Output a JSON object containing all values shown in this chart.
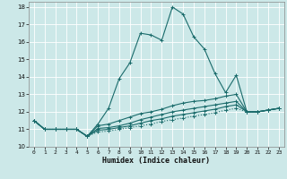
{
  "xlabel": "Humidex (Indice chaleur)",
  "background_color": "#cce8e8",
  "grid_color": "#aacccc",
  "line_color": "#1a6b6b",
  "xlim": [
    -0.5,
    23.5
  ],
  "ylim": [
    10,
    18.3
  ],
  "yticks": [
    10,
    11,
    12,
    13,
    14,
    15,
    16,
    17,
    18
  ],
  "xticks": [
    0,
    1,
    2,
    3,
    4,
    5,
    6,
    7,
    8,
    9,
    10,
    11,
    12,
    13,
    14,
    15,
    16,
    17,
    18,
    19,
    20,
    21,
    22,
    23
  ],
  "lines": [
    {
      "x": [
        0,
        1,
        2,
        3,
        4,
        5,
        6,
        7,
        8,
        9,
        10,
        11,
        12,
        13,
        14,
        15,
        16,
        17,
        18,
        19,
        20,
        21,
        22,
        23
      ],
      "y": [
        11.5,
        11.0,
        11.0,
        11.0,
        11.0,
        10.6,
        11.3,
        12.2,
        13.9,
        14.8,
        16.5,
        16.4,
        16.1,
        18.0,
        17.6,
        16.3,
        15.6,
        14.2,
        13.1,
        14.1,
        12.0,
        12.0,
        12.1,
        12.2
      ],
      "style": "solid"
    },
    {
      "x": [
        0,
        1,
        2,
        3,
        4,
        5,
        6,
        7,
        8,
        9,
        10,
        11,
        12,
        13,
        14,
        15,
        16,
        17,
        18,
        19,
        20,
        21,
        22,
        23
      ],
      "y": [
        11.5,
        11.0,
        11.0,
        11.0,
        11.0,
        10.6,
        11.2,
        11.3,
        11.5,
        11.7,
        11.9,
        12.0,
        12.15,
        12.35,
        12.5,
        12.6,
        12.65,
        12.75,
        12.9,
        13.0,
        12.0,
        12.0,
        12.1,
        12.2
      ],
      "style": "solid"
    },
    {
      "x": [
        0,
        1,
        2,
        3,
        4,
        5,
        6,
        7,
        8,
        9,
        10,
        11,
        12,
        13,
        14,
        15,
        16,
        17,
        18,
        19,
        20,
        21,
        22,
        23
      ],
      "y": [
        11.5,
        11.0,
        11.0,
        11.0,
        11.0,
        10.6,
        11.05,
        11.1,
        11.2,
        11.35,
        11.55,
        11.7,
        11.85,
        12.0,
        12.1,
        12.2,
        12.3,
        12.4,
        12.5,
        12.6,
        12.0,
        12.0,
        12.1,
        12.2
      ],
      "style": "solid"
    },
    {
      "x": [
        0,
        1,
        2,
        3,
        4,
        5,
        6,
        7,
        8,
        9,
        10,
        11,
        12,
        13,
        14,
        15,
        16,
        17,
        18,
        19,
        20,
        21,
        22,
        23
      ],
      "y": [
        11.5,
        11.0,
        11.0,
        11.0,
        11.0,
        10.6,
        10.95,
        11.0,
        11.1,
        11.2,
        11.35,
        11.5,
        11.6,
        11.75,
        11.85,
        11.95,
        12.05,
        12.15,
        12.3,
        12.4,
        12.0,
        12.0,
        12.1,
        12.2
      ],
      "style": "solid"
    },
    {
      "x": [
        0,
        1,
        2,
        3,
        4,
        5,
        6,
        7,
        8,
        9,
        10,
        11,
        12,
        13,
        14,
        15,
        16,
        17,
        18,
        19,
        20,
        21,
        22,
        23
      ],
      "y": [
        11.5,
        11.0,
        11.0,
        11.0,
        11.0,
        10.6,
        10.85,
        10.9,
        11.0,
        11.1,
        11.2,
        11.3,
        11.45,
        11.55,
        11.65,
        11.75,
        11.85,
        11.95,
        12.1,
        12.2,
        12.0,
        12.0,
        12.1,
        12.2
      ],
      "style": "dotted"
    }
  ]
}
